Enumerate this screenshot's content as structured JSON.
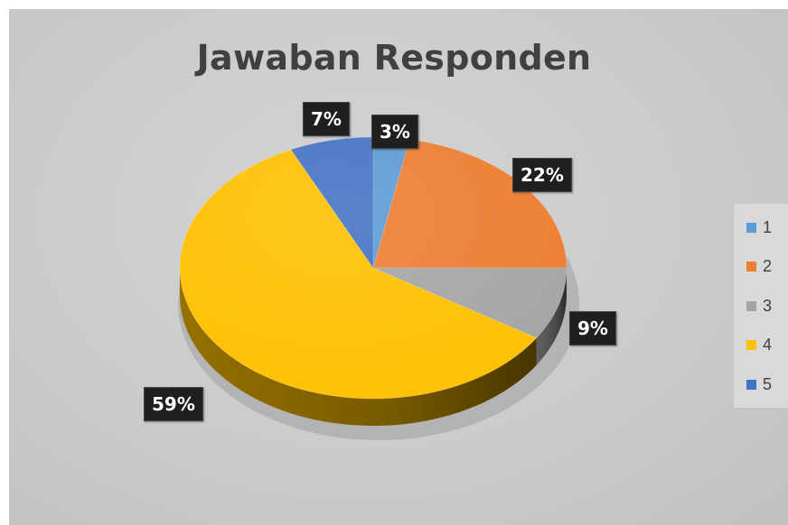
{
  "chart_data": {
    "type": "pie",
    "title": "Jawaban Responden",
    "categories": [
      "1",
      "2",
      "3",
      "4",
      "5"
    ],
    "values": [
      3,
      22,
      9,
      59,
      7
    ],
    "data_labels": [
      "3%",
      "22%",
      "9%",
      "59%",
      "7%"
    ],
    "colors": [
      "#5b9bd5",
      "#ed7d31",
      "#a5a5a5",
      "#ffc000",
      "#4472c4"
    ],
    "legend": {
      "position": "right",
      "entries": [
        "1",
        "2",
        "3",
        "4",
        "5"
      ]
    },
    "style": "3d"
  }
}
